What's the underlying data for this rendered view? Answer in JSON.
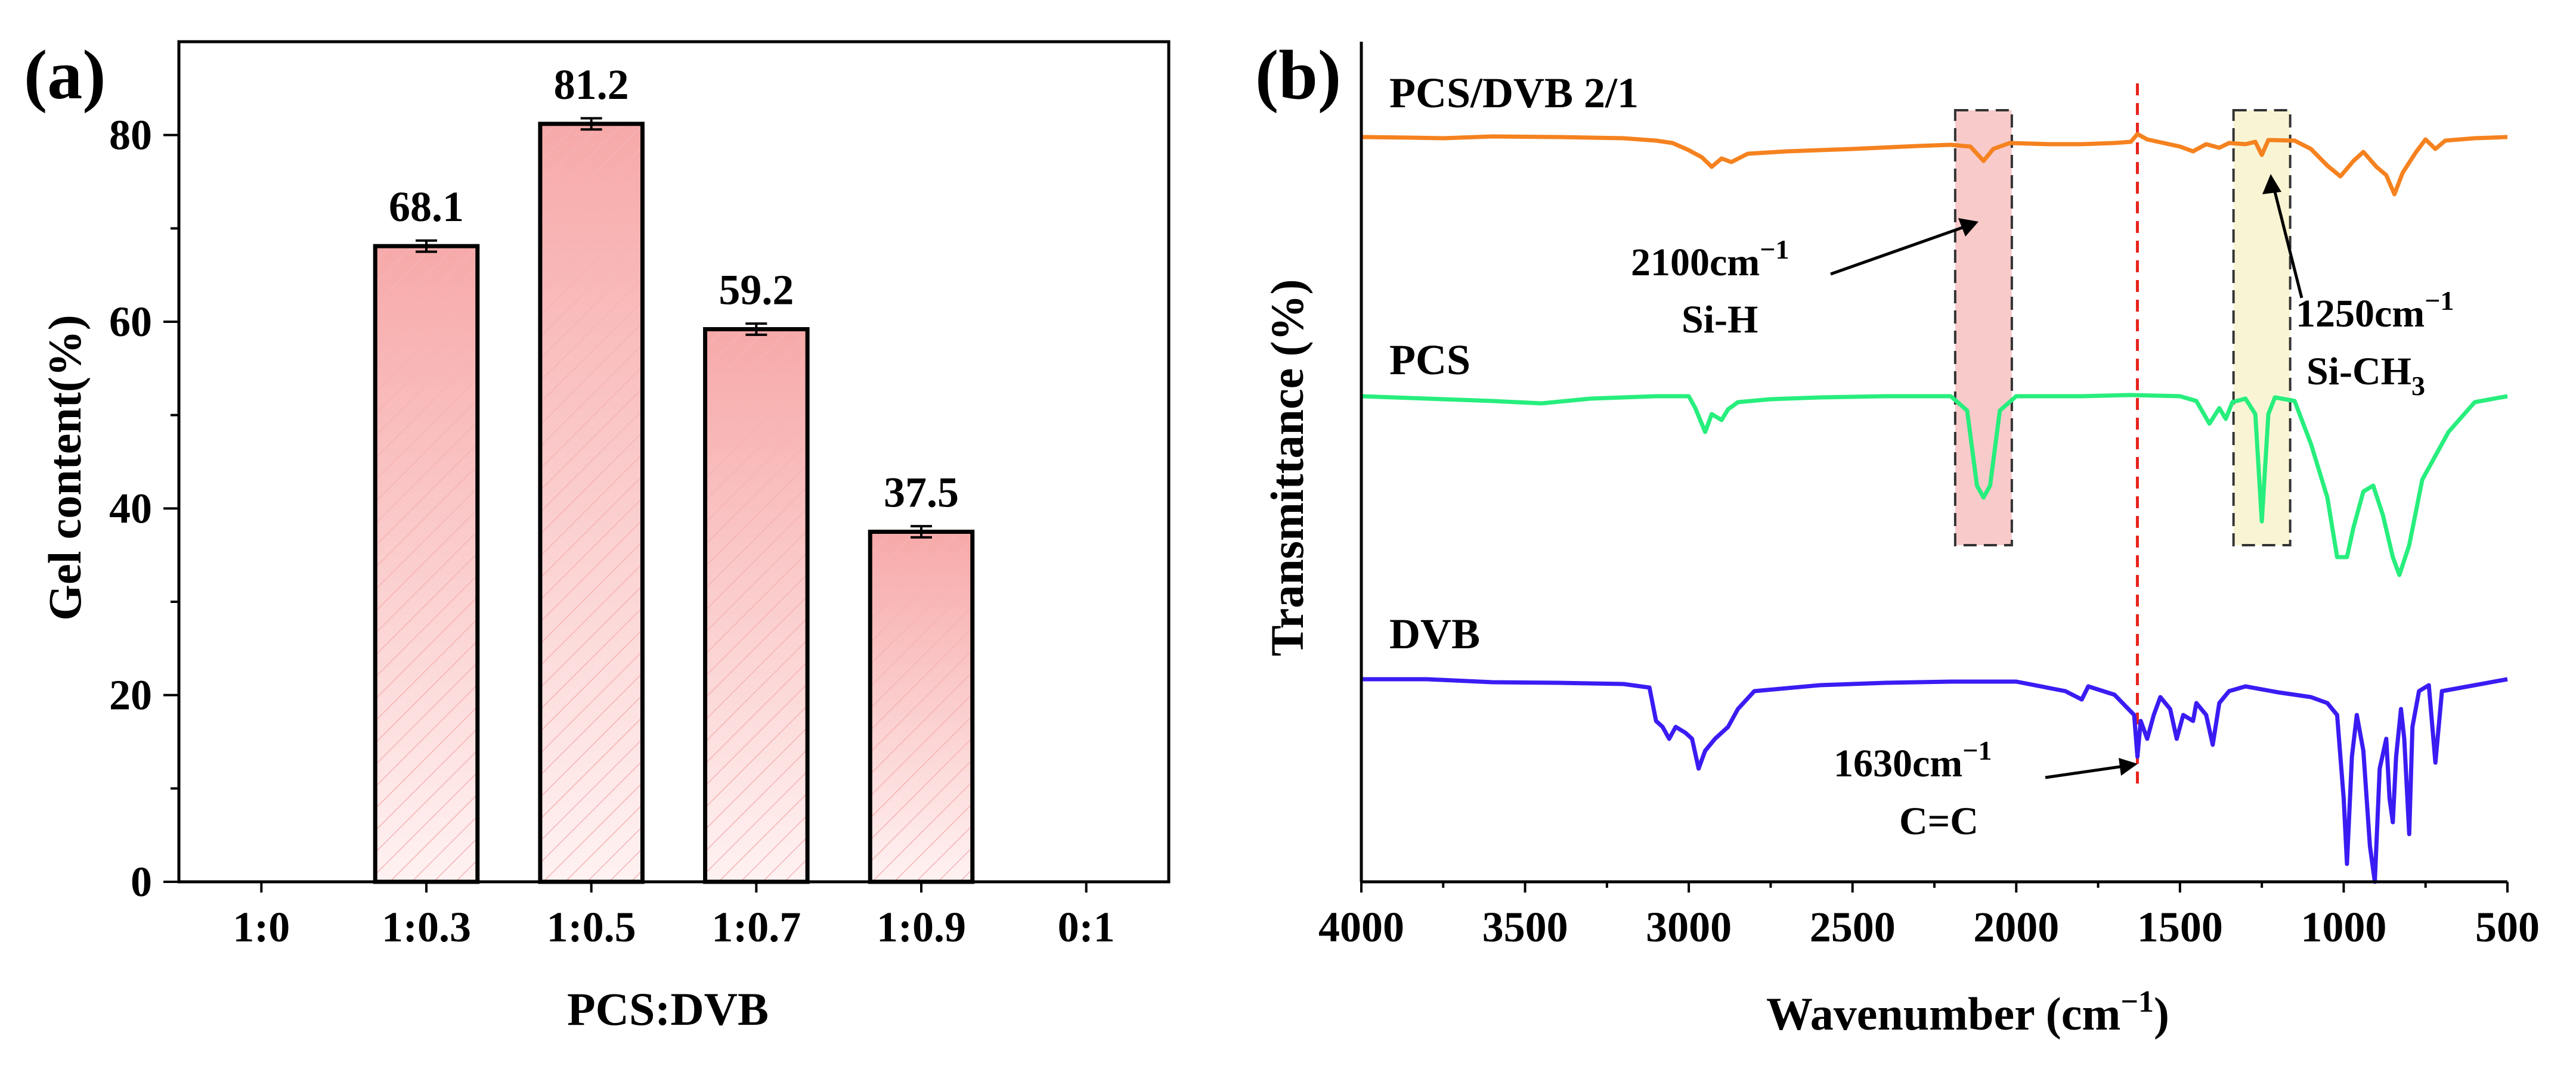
{
  "chart_data": [
    {
      "panel": "(a)",
      "type": "bar",
      "xlabel": "PCS:DVB",
      "ylabel": "Gel content(%)",
      "ylim": [
        0,
        90
      ],
      "yticks": [
        0,
        20,
        40,
        60,
        80
      ],
      "categories": [
        "1:0",
        "1:0.3",
        "1:0.5",
        "1:0.7",
        "1:0.9",
        "0:1"
      ],
      "values": [
        null,
        68.1,
        81.2,
        59.2,
        37.5,
        null
      ],
      "value_labels": [
        "",
        "68.1",
        "81.2",
        "59.2",
        "37.5",
        ""
      ],
      "errors": [
        null,
        0.6,
        0.6,
        0.6,
        0.6,
        null
      ],
      "bar_color": "#f7a9a9",
      "bar_color_light": "#fff2f2"
    },
    {
      "panel": "(b)",
      "type": "line",
      "xlabel_main": "Wavenumber (cm",
      "xlabel_sup": "−1",
      "xlabel_end": ")",
      "ylabel": "Transmittance (%)",
      "xlim": [
        4000,
        500
      ],
      "xticks": [
        4000,
        3500,
        3000,
        2500,
        2000,
        1500,
        1000,
        500
      ],
      "series": [
        {
          "name": "PCS/DVB 2/1",
          "color": "#f5821f",
          "baseline": 0,
          "points": [
            [
              4000,
              0
            ],
            [
              3850,
              -1
            ],
            [
              3750,
              -2
            ],
            [
              3600,
              1
            ],
            [
              3400,
              0
            ],
            [
              3200,
              -2
            ],
            [
              3100,
              -6
            ],
            [
              3050,
              -10
            ],
            [
              3000,
              -22
            ],
            [
              2960,
              -34
            ],
            [
              2930,
              -50
            ],
            [
              2900,
              -36
            ],
            [
              2870,
              -42
            ],
            [
              2820,
              -28
            ],
            [
              2700,
              -24
            ],
            [
              2500,
              -20
            ],
            [
              2300,
              -15
            ],
            [
              2200,
              -13
            ],
            [
              2140,
              -16
            ],
            [
              2100,
              -40
            ],
            [
              2070,
              -20
            ],
            [
              2020,
              -10
            ],
            [
              1900,
              -12
            ],
            [
              1800,
              -12
            ],
            [
              1700,
              -10
            ],
            [
              1650,
              -8
            ],
            [
              1630,
              5
            ],
            [
              1600,
              -4
            ],
            [
              1550,
              -10
            ],
            [
              1500,
              -16
            ],
            [
              1460,
              -24
            ],
            [
              1420,
              -12
            ],
            [
              1380,
              -18
            ],
            [
              1350,
              -10
            ],
            [
              1300,
              -12
            ],
            [
              1270,
              -8
            ],
            [
              1250,
              -30
            ],
            [
              1230,
              -5
            ],
            [
              1150,
              -6
            ],
            [
              1100,
              -20
            ],
            [
              1050,
              -48
            ],
            [
              1010,
              -66
            ],
            [
              970,
              -40
            ],
            [
              940,
              -25
            ],
            [
              900,
              -50
            ],
            [
              870,
              -64
            ],
            [
              845,
              -96
            ],
            [
              820,
              -60
            ],
            [
              780,
              -26
            ],
            [
              750,
              -4
            ],
            [
              720,
              -20
            ],
            [
              690,
              -6
            ],
            [
              600,
              -2
            ],
            [
              500,
              0
            ]
          ]
        },
        {
          "name": "PCS",
          "color": "#27ee7d",
          "baseline": 0,
          "points": [
            [
              4000,
              0
            ],
            [
              3800,
              -4
            ],
            [
              3600,
              -8
            ],
            [
              3450,
              -12
            ],
            [
              3300,
              -4
            ],
            [
              3100,
              0
            ],
            [
              3000,
              0
            ],
            [
              2980,
              -20
            ],
            [
              2950,
              -60
            ],
            [
              2930,
              -30
            ],
            [
              2900,
              -40
            ],
            [
              2880,
              -22
            ],
            [
              2850,
              -10
            ],
            [
              2750,
              -5
            ],
            [
              2600,
              -2
            ],
            [
              2400,
              0
            ],
            [
              2200,
              0
            ],
            [
              2150,
              -24
            ],
            [
              2120,
              -150
            ],
            [
              2100,
              -170
            ],
            [
              2080,
              -150
            ],
            [
              2050,
              -24
            ],
            [
              2000,
              0
            ],
            [
              1800,
              0
            ],
            [
              1650,
              2
            ],
            [
              1500,
              0
            ],
            [
              1450,
              -8
            ],
            [
              1410,
              -46
            ],
            [
              1380,
              -20
            ],
            [
              1360,
              -38
            ],
            [
              1340,
              -10
            ],
            [
              1300,
              -4
            ],
            [
              1270,
              -30
            ],
            [
              1250,
              -210
            ],
            [
              1230,
              -30
            ],
            [
              1210,
              -2
            ],
            [
              1150,
              -8
            ],
            [
              1100,
              -80
            ],
            [
              1050,
              -170
            ],
            [
              1020,
              -270
            ],
            [
              990,
              -270
            ],
            [
              970,
              -220
            ],
            [
              940,
              -160
            ],
            [
              910,
              -150
            ],
            [
              880,
              -200
            ],
            [
              850,
              -270
            ],
            [
              830,
              -300
            ],
            [
              800,
              -250
            ],
            [
              760,
              -140
            ],
            [
              720,
              -100
            ],
            [
              680,
              -60
            ],
            [
              600,
              -10
            ],
            [
              500,
              0
            ]
          ]
        },
        {
          "name": "DVB",
          "color": "#3a1cf3",
          "baseline": 0,
          "points": [
            [
              4000,
              0
            ],
            [
              3800,
              0
            ],
            [
              3600,
              -5
            ],
            [
              3400,
              -6
            ],
            [
              3200,
              -8
            ],
            [
              3120,
              -14
            ],
            [
              3100,
              -70
            ],
            [
              3080,
              -80
            ],
            [
              3060,
              -100
            ],
            [
              3040,
              -80
            ],
            [
              3010,
              -90
            ],
            [
              2990,
              -100
            ],
            [
              2970,
              -150
            ],
            [
              2950,
              -120
            ],
            [
              2920,
              -100
            ],
            [
              2880,
              -80
            ],
            [
              2850,
              -50
            ],
            [
              2800,
              -20
            ],
            [
              2600,
              -10
            ],
            [
              2400,
              -6
            ],
            [
              2200,
              -4
            ],
            [
              2000,
              -4
            ],
            [
              1850,
              -20
            ],
            [
              1800,
              -34
            ],
            [
              1780,
              -12
            ],
            [
              1700,
              -26
            ],
            [
              1640,
              -60
            ],
            [
              1630,
              -130
            ],
            [
              1620,
              -70
            ],
            [
              1600,
              -100
            ],
            [
              1580,
              -60
            ],
            [
              1560,
              -30
            ],
            [
              1530,
              -50
            ],
            [
              1510,
              -100
            ],
            [
              1490,
              -60
            ],
            [
              1460,
              -70
            ],
            [
              1450,
              -40
            ],
            [
              1420,
              -60
            ],
            [
              1400,
              -110
            ],
            [
              1380,
              -40
            ],
            [
              1350,
              -20
            ],
            [
              1300,
              -12
            ],
            [
              1200,
              -22
            ],
            [
              1100,
              -30
            ],
            [
              1050,
              -40
            ],
            [
              1020,
              -60
            ],
            [
              1000,
              -200
            ],
            [
              990,
              -310
            ],
            [
              975,
              -130
            ],
            [
              960,
              -60
            ],
            [
              940,
              -120
            ],
            [
              920,
              -280
            ],
            [
              905,
              -340
            ],
            [
              890,
              -150
            ],
            [
              870,
              -100
            ],
            [
              860,
              -200
            ],
            [
              850,
              -240
            ],
            [
              840,
              -130
            ],
            [
              825,
              -50
            ],
            [
              815,
              -100
            ],
            [
              800,
              -260
            ],
            [
              790,
              -80
            ],
            [
              770,
              -20
            ],
            [
              740,
              -10
            ],
            [
              720,
              -140
            ],
            [
              700,
              -20
            ],
            [
              600,
              -10
            ],
            [
              500,
              0
            ]
          ]
        }
      ],
      "highlights": [
        {
          "name": "Si-H band",
          "center": 2100,
          "color": "#f7b8b8"
        },
        {
          "name": "Si-CH3 band",
          "center": 1250,
          "color": "#f7f2c6"
        }
      ],
      "reference_line": {
        "x": 1630,
        "color": "#e8231c"
      },
      "annotations": {
        "sih_line1_main": "2100cm",
        "sih_line1_sup": "−1",
        "sih_line2": "Si-H",
        "sich3_line1_main": "1250cm",
        "sich3_line1_sup": "−1",
        "sich3_line2_main": "Si-CH",
        "sich3_line2_sub": "3",
        "cc_line1_main": "1630cm",
        "cc_line1_sup": "−1",
        "cc_line2": "C=C"
      }
    }
  ]
}
